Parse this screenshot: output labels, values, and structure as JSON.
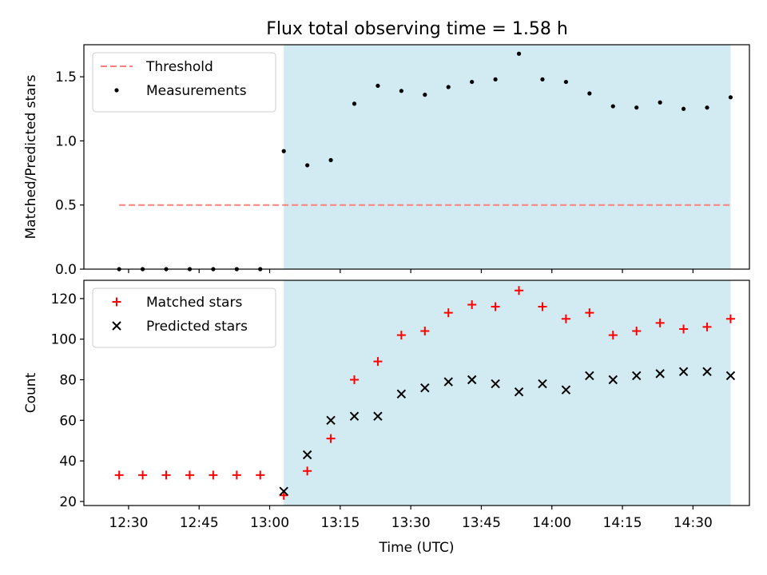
{
  "figure_title": "Flux total observing time = 1.58 h",
  "colors": {
    "shade": "#add8e6",
    "threshold": "#ff7f7f",
    "measurement": "#000000",
    "matched": "#ff0000",
    "predicted": "#000000"
  },
  "chart_data": [
    {
      "type": "scatter",
      "panel": "top",
      "title": "Flux total observing time = 1.58 h",
      "xlabel": "",
      "ylabel": "Matched/Predicted stars",
      "xlim": [
        "12:23",
        "14:38"
      ],
      "ylim": [
        0,
        1.75
      ],
      "yticks": [
        0.0,
        0.5,
        1.0,
        1.5
      ],
      "ytick_labels": [
        "0.0",
        "0.5",
        "1.0",
        "1.5"
      ],
      "xticks": [
        "12:30",
        "12:45",
        "13:00",
        "13:15",
        "13:30",
        "13:45",
        "14:00",
        "14:15",
        "14:30"
      ],
      "show_xtick_labels": false,
      "shaded_region": {
        "x0": "13:03",
        "x1": "14:38",
        "color": "#add8e6"
      },
      "legend_position": "top-left",
      "threshold": {
        "name": "Threshold",
        "value": 0.5,
        "x0": "12:28",
        "x1": "14:38",
        "style": "dashed"
      },
      "series": [
        {
          "name": "Measurements",
          "marker": "dot",
          "x": [
            "12:28",
            "12:33",
            "12:38",
            "12:43",
            "12:48",
            "12:53",
            "12:58",
            "13:03",
            "13:08",
            "13:13",
            "13:18",
            "13:23",
            "13:28",
            "13:33",
            "13:38",
            "13:43",
            "13:48",
            "13:53",
            "13:58",
            "14:03",
            "14:08",
            "14:13",
            "14:18",
            "14:23",
            "14:28",
            "14:33",
            "14:38"
          ],
          "y": [
            0.0,
            0.0,
            0.0,
            0.0,
            0.0,
            0.0,
            0.0,
            0.92,
            0.81,
            0.85,
            1.29,
            1.43,
            1.39,
            1.36,
            1.42,
            1.46,
            1.48,
            1.68,
            1.48,
            1.46,
            1.37,
            1.27,
            1.26,
            1.3,
            1.25,
            1.26,
            1.34
          ]
        }
      ]
    },
    {
      "type": "scatter",
      "panel": "bottom",
      "title": "",
      "xlabel": "Time (UTC)",
      "ylabel": "Count",
      "xlim": [
        "12:23",
        "14:38"
      ],
      "ylim": [
        18,
        129
      ],
      "yticks": [
        20,
        40,
        60,
        80,
        100,
        120
      ],
      "ytick_labels": [
        "20",
        "40",
        "60",
        "80",
        "100",
        "120"
      ],
      "xticks": [
        "12:30",
        "12:45",
        "13:00",
        "13:15",
        "13:30",
        "13:45",
        "14:00",
        "14:15",
        "14:30"
      ],
      "show_xtick_labels": true,
      "shaded_region": {
        "x0": "13:03",
        "x1": "14:38",
        "color": "#add8e6"
      },
      "legend_position": "top-left",
      "series": [
        {
          "name": "Matched stars",
          "marker": "plus",
          "x": [
            "12:28",
            "12:33",
            "12:38",
            "12:43",
            "12:48",
            "12:53",
            "12:58",
            "13:03",
            "13:08",
            "13:13",
            "13:18",
            "13:23",
            "13:28",
            "13:33",
            "13:38",
            "13:43",
            "13:48",
            "13:53",
            "13:58",
            "14:03",
            "14:08",
            "14:13",
            "14:18",
            "14:23",
            "14:28",
            "14:33",
            "14:38"
          ],
          "y": [
            33,
            33,
            33,
            33,
            33,
            33,
            33,
            23,
            35,
            51,
            80,
            89,
            102,
            104,
            113,
            117,
            116,
            124,
            116,
            110,
            113,
            102,
            104,
            108,
            105,
            106,
            110
          ]
        },
        {
          "name": "Predicted stars",
          "marker": "x",
          "x": [
            "13:03",
            "13:08",
            "13:13",
            "13:18",
            "13:23",
            "13:28",
            "13:33",
            "13:38",
            "13:43",
            "13:48",
            "13:53",
            "13:58",
            "14:03",
            "14:08",
            "14:13",
            "14:18",
            "14:23",
            "14:28",
            "14:33",
            "14:38"
          ],
          "y": [
            25,
            43,
            60,
            62,
            62,
            73,
            76,
            79,
            80,
            78,
            74,
            78,
            75,
            82,
            80,
            82,
            83,
            84,
            84,
            82
          ]
        }
      ]
    }
  ]
}
